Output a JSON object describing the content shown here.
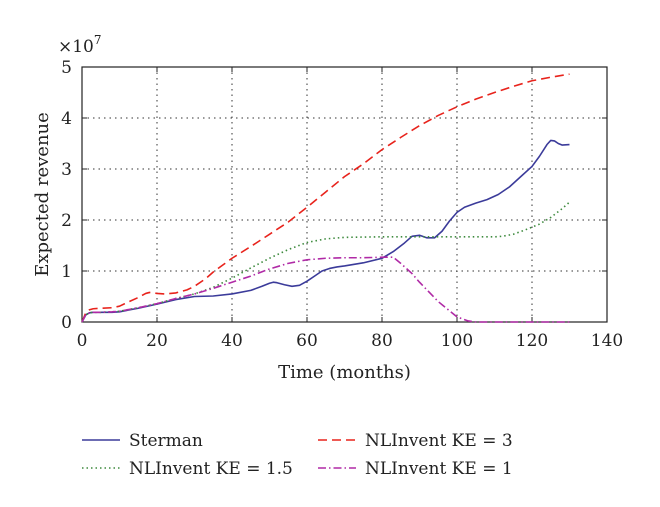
{
  "chart_data": {
    "type": "line",
    "xlabel": "Time (months)",
    "ylabel": "Expected revenue",
    "y_multiplier_label": "×10",
    "y_multiplier_exponent": "7",
    "xlim": [
      0,
      140
    ],
    "ylim": [
      0,
      5
    ],
    "x_ticks": [
      0,
      20,
      40,
      60,
      80,
      100,
      120,
      140
    ],
    "x_tick_labels": [
      "0",
      "20",
      "40",
      "60",
      "80",
      "100",
      "120",
      "140"
    ],
    "y_ticks": [
      0,
      1,
      2,
      3,
      4,
      5
    ],
    "y_tick_labels": [
      "0",
      "1",
      "2",
      "3",
      "4",
      "5"
    ],
    "grid": true,
    "legend_position": "bottom",
    "series": [
      {
        "name": "Sterman",
        "color": "#3b3b9a",
        "dash": "solid",
        "x": [
          0,
          1,
          2,
          3,
          5,
          8,
          10,
          15,
          20,
          25,
          30,
          35,
          40,
          45,
          48,
          50,
          51,
          52,
          54,
          56,
          58,
          60,
          62,
          64,
          66,
          68,
          70,
          75,
          80,
          83,
          86,
          88,
          90,
          92,
          94,
          96,
          98,
          100,
          102,
          105,
          108,
          111,
          114,
          117,
          120,
          122,
          124,
          125,
          126,
          127,
          128,
          130
        ],
        "y": [
          0,
          0.14,
          0.18,
          0.19,
          0.19,
          0.19,
          0.2,
          0.27,
          0.35,
          0.44,
          0.5,
          0.51,
          0.55,
          0.62,
          0.7,
          0.76,
          0.78,
          0.77,
          0.73,
          0.7,
          0.72,
          0.8,
          0.9,
          1.0,
          1.05,
          1.08,
          1.1,
          1.16,
          1.25,
          1.38,
          1.55,
          1.68,
          1.7,
          1.65,
          1.65,
          1.78,
          1.98,
          2.15,
          2.25,
          2.33,
          2.4,
          2.5,
          2.65,
          2.85,
          3.05,
          3.25,
          3.48,
          3.56,
          3.55,
          3.5,
          3.47,
          3.48
        ]
      },
      {
        "name": "NLInvent KE = 3",
        "color": "#e8231c",
        "dash": "dashed",
        "x": [
          0,
          1,
          2,
          3,
          5,
          8,
          10,
          12,
          15,
          17,
          18,
          20,
          22,
          25,
          28,
          30,
          33,
          35,
          40,
          45,
          50,
          55,
          60,
          65,
          70,
          75,
          80,
          85,
          90,
          95,
          100,
          105,
          110,
          115,
          120,
          125,
          130
        ],
        "y": [
          0,
          0.18,
          0.24,
          0.26,
          0.27,
          0.28,
          0.31,
          0.38,
          0.48,
          0.56,
          0.58,
          0.56,
          0.55,
          0.57,
          0.63,
          0.7,
          0.85,
          0.98,
          1.25,
          1.48,
          1.72,
          1.96,
          2.25,
          2.55,
          2.85,
          3.1,
          3.38,
          3.62,
          3.85,
          4.05,
          4.22,
          4.37,
          4.5,
          4.62,
          4.73,
          4.8,
          4.86
        ]
      },
      {
        "name": "NLInvent KE = 1.5",
        "color": "#3d8a3d",
        "dash": "dotted",
        "x": [
          0,
          1,
          2,
          3,
          5,
          8,
          10,
          15,
          20,
          25,
          30,
          35,
          40,
          45,
          50,
          55,
          60,
          65,
          70,
          80,
          90,
          100,
          110,
          112,
          115,
          118,
          120,
          122,
          125,
          128,
          130
        ],
        "y": [
          0,
          0.14,
          0.18,
          0.19,
          0.19,
          0.2,
          0.21,
          0.28,
          0.36,
          0.46,
          0.55,
          0.68,
          0.86,
          1.06,
          1.25,
          1.42,
          1.56,
          1.63,
          1.66,
          1.67,
          1.67,
          1.67,
          1.67,
          1.68,
          1.72,
          1.8,
          1.86,
          1.92,
          2.05,
          2.22,
          2.35
        ]
      },
      {
        "name": "NLInvent KE = 1",
        "color": "#b02aa6",
        "dash": "dashdot",
        "x": [
          0,
          1,
          2,
          3,
          5,
          8,
          10,
          15,
          20,
          25,
          30,
          35,
          40,
          45,
          50,
          55,
          60,
          65,
          70,
          75,
          80,
          83,
          85,
          88,
          90,
          95,
          100,
          103,
          105,
          110,
          120,
          130
        ],
        "y": [
          0,
          0.14,
          0.18,
          0.19,
          0.19,
          0.2,
          0.21,
          0.28,
          0.36,
          0.46,
          0.55,
          0.66,
          0.78,
          0.9,
          1.04,
          1.15,
          1.22,
          1.25,
          1.26,
          1.26,
          1.27,
          1.27,
          1.15,
          0.95,
          0.78,
          0.4,
          0.1,
          0.02,
          0.0,
          0.0,
          0.0,
          0.0
        ]
      }
    ]
  }
}
